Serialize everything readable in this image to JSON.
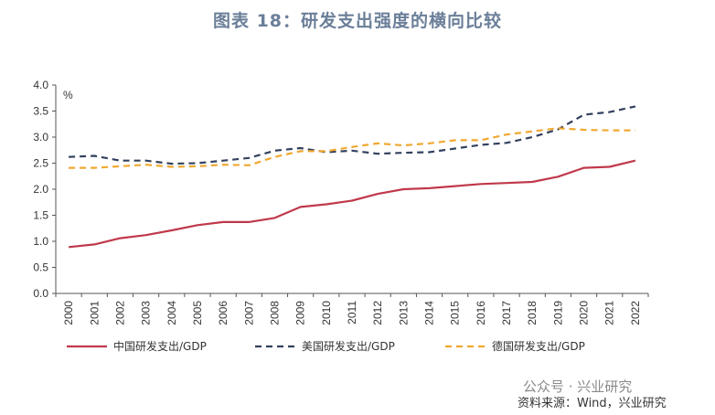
{
  "title": "图表 18：研发支出强度的横向比较",
  "chart_data": {
    "type": "line",
    "title": "图表 18：研发支出强度的横向比较",
    "unit_label": "%",
    "x": [
      "2000",
      "2001",
      "2002",
      "2003",
      "2004",
      "2005",
      "2006",
      "2007",
      "2008",
      "2009",
      "2010",
      "2011",
      "2012",
      "2013",
      "2014",
      "2015",
      "2016",
      "2017",
      "2018",
      "2019",
      "2020",
      "2021",
      "2022"
    ],
    "ylim": [
      0,
      4.0
    ],
    "yticks": [
      "0.0",
      "0.5",
      "1.0",
      "1.5",
      "2.0",
      "2.5",
      "3.0",
      "3.5",
      "4.0"
    ],
    "grid": false,
    "legend_position": "bottom",
    "series": [
      {
        "name": "中国研发支出/GDP",
        "color": "#c0394b",
        "style": "solid",
        "values": [
          0.89,
          0.94,
          1.06,
          1.12,
          1.21,
          1.31,
          1.37,
          1.37,
          1.45,
          1.66,
          1.71,
          1.78,
          1.91,
          2.0,
          2.02,
          2.06,
          2.1,
          2.12,
          2.14,
          2.24,
          2.41,
          2.43,
          2.55
        ]
      },
      {
        "name": "美国研发支出/GDP",
        "color": "#33415e",
        "style": "dashed",
        "values": [
          2.62,
          2.64,
          2.55,
          2.55,
          2.49,
          2.5,
          2.55,
          2.6,
          2.74,
          2.79,
          2.71,
          2.74,
          2.68,
          2.7,
          2.71,
          2.78,
          2.85,
          2.89,
          3.0,
          3.15,
          3.43,
          3.48,
          3.59
        ]
      },
      {
        "name": "德国研发支出/GDP",
        "color": "#f0a830",
        "style": "dashed",
        "values": [
          2.41,
          2.41,
          2.44,
          2.47,
          2.43,
          2.44,
          2.47,
          2.46,
          2.62,
          2.73,
          2.73,
          2.81,
          2.88,
          2.84,
          2.88,
          2.94,
          2.94,
          3.05,
          3.11,
          3.17,
          3.14,
          3.13,
          3.13
        ]
      }
    ]
  },
  "watermark": "公众号 · 兴业研究",
  "source": "资料来源：Wind，兴业研究"
}
